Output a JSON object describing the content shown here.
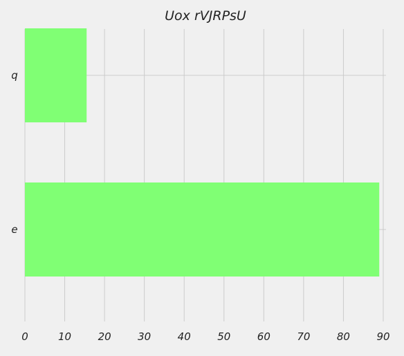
{
  "chart_data": {
    "type": "bar",
    "orientation": "horizontal",
    "title": "Uox rVJRPsU",
    "xlabel": "",
    "ylabel": "",
    "categories": [
      "e",
      "q"
    ],
    "values": [
      89,
      15.5
    ],
    "xlim": [
      0,
      90
    ],
    "xticks": [
      0,
      10,
      20,
      30,
      40,
      50,
      60,
      70,
      80,
      90
    ],
    "grid": true,
    "legend": "none",
    "colors": {
      "bar": "#80ff74",
      "background": "#f0f0f0",
      "grid": "#cbcbcb",
      "text": "#222222"
    }
  }
}
